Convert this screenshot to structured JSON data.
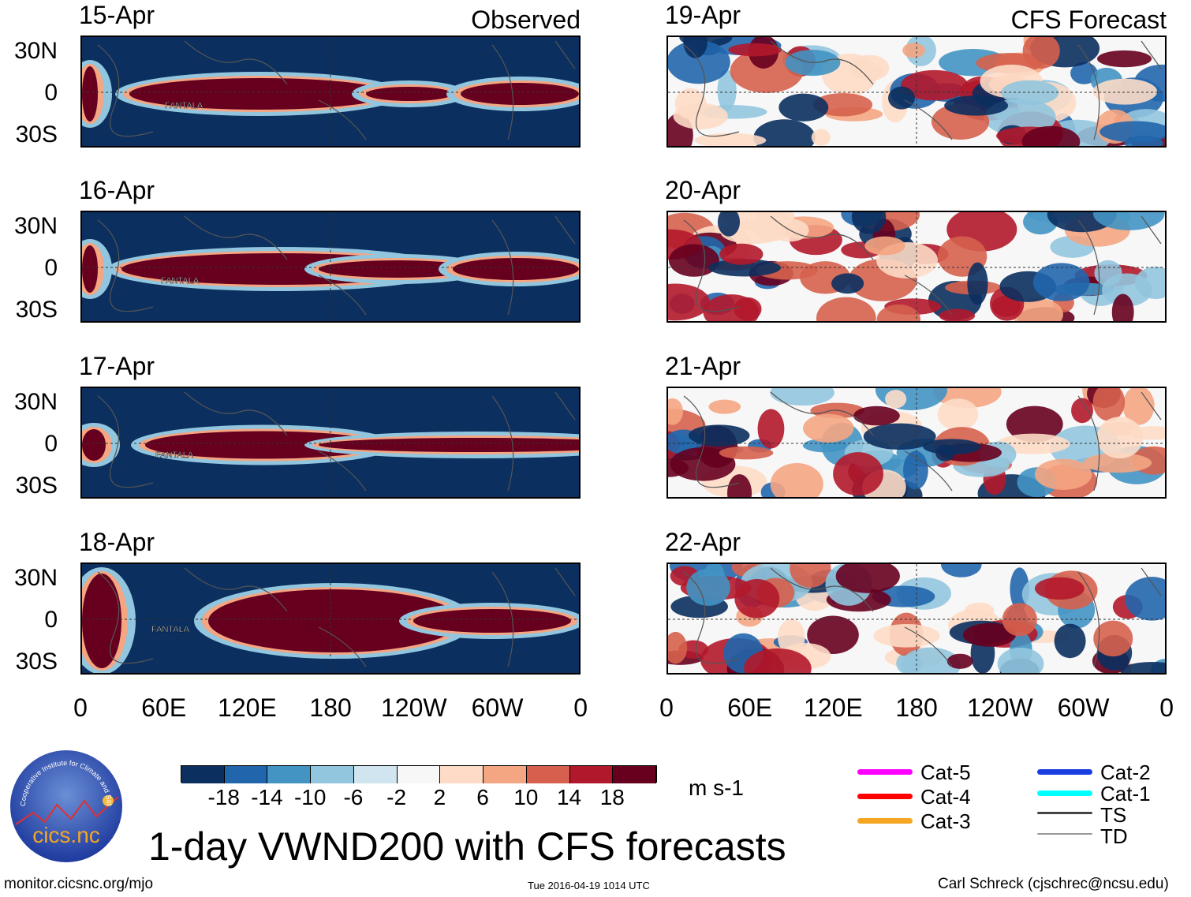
{
  "left_column": {
    "title": "Observed",
    "panels": [
      {
        "date": "15-Apr",
        "storm_label": "FANTALA"
      },
      {
        "date": "16-Apr",
        "storm_label": "FANTALA"
      },
      {
        "date": "17-Apr",
        "storm_label": "FANTALA"
      },
      {
        "date": "18-Apr",
        "storm_label": "FANTALA"
      }
    ]
  },
  "right_column": {
    "title": "CFS Forecast",
    "panels": [
      {
        "date": "19-Apr"
      },
      {
        "date": "20-Apr"
      },
      {
        "date": "21-Apr"
      },
      {
        "date": "22-Apr"
      }
    ]
  },
  "lat_labels": [
    "30N",
    "0",
    "30S"
  ],
  "lon_labels": [
    "0",
    "60E",
    "120E",
    "180",
    "120W",
    "60W",
    "0"
  ],
  "colorbar": {
    "colors": [
      "#0b2f5f",
      "#2166ac",
      "#4393c3",
      "#92c5de",
      "#d1e5f0",
      "#f7f7f7",
      "#fddbc7",
      "#f4a582",
      "#d6604d",
      "#b2182b",
      "#67001f"
    ],
    "labels": [
      "-18",
      "-14",
      "-10",
      "-6",
      "-2",
      "2",
      "6",
      "10",
      "14",
      "18"
    ],
    "units": "m s-1"
  },
  "legend": [
    {
      "label": "Cat-5",
      "color": "#ff00ff"
    },
    {
      "label": "Cat-4",
      "color": "#ff0000"
    },
    {
      "label": "Cat-3",
      "color": "#f5a623"
    },
    {
      "label": "Cat-2",
      "color": "#1a3fe0"
    },
    {
      "label": "Cat-1",
      "color": "#00ffff"
    },
    {
      "label": "TS",
      "color": "#444444"
    },
    {
      "label": "TD",
      "color": "#999999"
    }
  ],
  "logo_text": "cics.nc",
  "logo_ring_text": "Cooperative Institute for Climate and Satellites",
  "main_title": "1-day VWND200 with CFS forecasts",
  "footer": {
    "url": "monitor.cicsnc.org/mjo",
    "timestamp": "Tue 2016-04-19 1014 UTC",
    "author": "Carl Schreck (cjschrec@ncsu.edu)"
  }
}
